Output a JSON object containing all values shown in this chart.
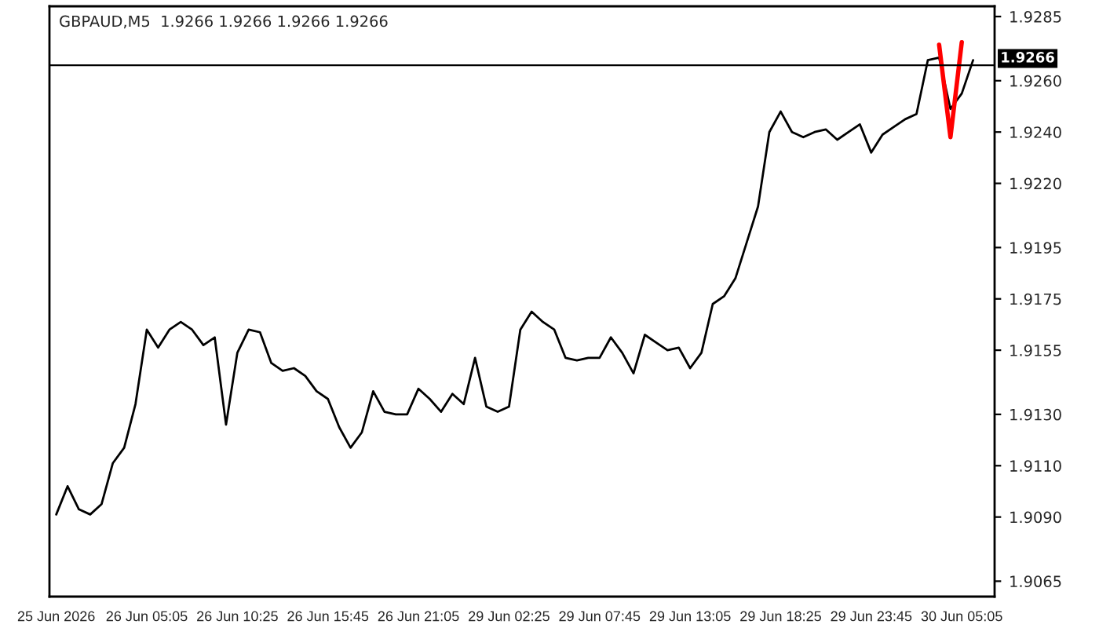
{
  "chart_data": {
    "type": "line",
    "title": "GBPAUD,M5  1.9266 1.9266 1.9266 1.9266",
    "categories": [
      "25 Jun 2026",
      null,
      null,
      null,
      null,
      null,
      null,
      null,
      "26 Jun 05:05",
      null,
      null,
      null,
      null,
      null,
      null,
      null,
      "26 Jun 10:25",
      null,
      null,
      null,
      null,
      null,
      null,
      null,
      "26 Jun 15:45",
      null,
      null,
      null,
      null,
      null,
      null,
      null,
      "26 Jun 21:05",
      null,
      null,
      null,
      null,
      null,
      null,
      null,
      "29 Jun 02:25",
      null,
      null,
      null,
      null,
      null,
      null,
      null,
      "29 Jun 07:45",
      null,
      null,
      null,
      null,
      null,
      null,
      null,
      "29 Jun 13:05",
      null,
      null,
      null,
      null,
      null,
      null,
      null,
      "29 Jun 18:25",
      null,
      null,
      null,
      null,
      null,
      null,
      null,
      "29 Jun 23:45",
      null,
      null,
      null,
      null,
      null,
      null,
      null,
      "30 Jun 05:05",
      null
    ],
    "ylim": [
      1.9059,
      1.9289
    ],
    "yticks": [
      1.9065,
      {
        "value": 1.909,
        "label": "1.9090"
      },
      {
        "value": 1.911,
        "label": "1.9110"
      },
      {
        "value": 1.913,
        "label": "1.9130"
      },
      1.9155,
      1.9175,
      1.9195,
      {
        "value": 1.922,
        "label": "1.9220"
      },
      {
        "value": 1.924,
        "label": "1.9240"
      },
      {
        "value": 1.926,
        "label": "1.9260"
      },
      1.9285
    ],
    "grid": false,
    "legend": false,
    "line_style": "solid",
    "ref_lines": [
      {
        "axis": "y",
        "value": 1.9266,
        "label": "1.9266",
        "color": "#000000"
      }
    ],
    "series": [
      {
        "color": "#000000",
        "values": [
          1.9091,
          1.9102,
          1.9093,
          1.9091,
          1.9095,
          1.9111,
          1.9117,
          1.9134,
          1.9163,
          1.9156,
          1.9163,
          1.9166,
          1.9163,
          1.9157,
          1.916,
          1.9126,
          1.9154,
          1.9163,
          1.9162,
          1.915,
          1.9147,
          1.9148,
          1.9145,
          1.9139,
          1.9136,
          1.9125,
          1.9117,
          1.9123,
          1.9139,
          1.9131,
          1.913,
          1.913,
          1.914,
          1.9136,
          1.9131,
          1.9138,
          1.9134,
          1.9152,
          1.9133,
          1.9131,
          1.9133,
          1.9163,
          1.917,
          1.9166,
          1.9163,
          1.9152,
          1.9151,
          1.9152,
          1.9152,
          1.916,
          1.9154,
          1.9146,
          1.9161,
          1.9158,
          1.9155,
          1.9156,
          1.9148,
          1.9154,
          1.9173,
          1.9176,
          1.9183,
          1.9197,
          1.9211,
          1.924,
          1.9248,
          1.924,
          1.9238,
          1.924,
          1.9241,
          1.9237,
          1.924,
          1.9243,
          1.9232,
          1.9239,
          1.9242,
          1.9245,
          1.9247,
          1.9268,
          1.9269,
          1.9249,
          1.9255,
          1.9268
        ]
      },
      {
        "color": "#ff0000",
        "values": [
          null,
          null,
          null,
          null,
          null,
          null,
          null,
          null,
          null,
          null,
          null,
          null,
          null,
          null,
          null,
          null,
          null,
          null,
          null,
          null,
          null,
          null,
          null,
          null,
          null,
          null,
          null,
          null,
          null,
          null,
          null,
          null,
          null,
          null,
          null,
          null,
          null,
          null,
          null,
          null,
          null,
          null,
          null,
          null,
          null,
          null,
          null,
          null,
          null,
          null,
          null,
          null,
          null,
          null,
          null,
          null,
          null,
          null,
          null,
          null,
          null,
          null,
          null,
          null,
          null,
          null,
          null,
          null,
          null,
          null,
          null,
          null,
          null,
          null,
          null,
          null,
          null,
          null,
          1.9274,
          1.9238,
          1.9275,
          null
        ]
      }
    ]
  }
}
